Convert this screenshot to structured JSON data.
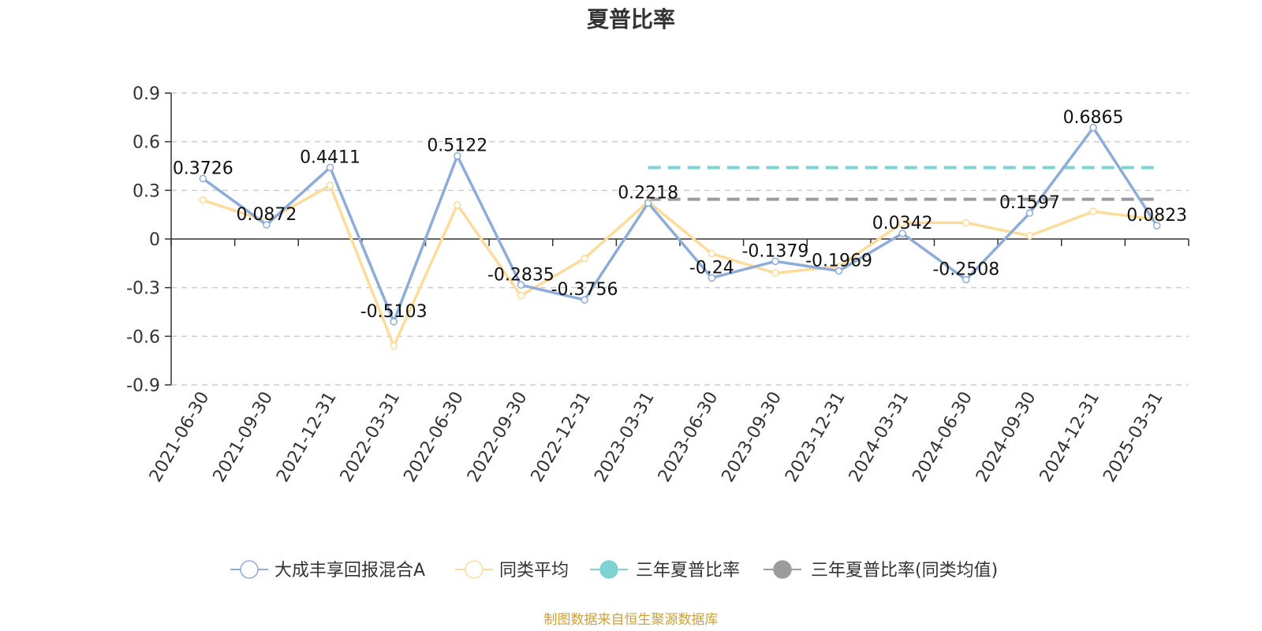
{
  "chart_data": {
    "type": "line",
    "title": "夏普比率",
    "categories": [
      "2021-06-30",
      "2021-09-30",
      "2021-12-31",
      "2022-03-31",
      "2022-06-30",
      "2022-09-30",
      "2022-12-31",
      "2023-03-31",
      "2023-06-30",
      "2023-09-30",
      "2023-12-31",
      "2024-03-31",
      "2024-06-30",
      "2024-09-30",
      "2024-12-31",
      "2025-03-31"
    ],
    "ylim": [
      -0.9,
      0.9
    ],
    "yticks": [
      0.9,
      0.6,
      0.3,
      0,
      -0.3,
      -0.6,
      -0.9
    ],
    "ytick_labels": [
      "0.9",
      "0.6",
      "0.3",
      "0",
      "-0.3",
      "-0.6",
      "-0.9"
    ],
    "grid": true,
    "legend_position": "bottom",
    "series": [
      {
        "name": "大成丰享回报混合A",
        "color": "#8eacd8",
        "values": [
          0.3726,
          0.0872,
          0.4411,
          -0.5103,
          0.5122,
          -0.2835,
          -0.3756,
          0.2218,
          -0.24,
          -0.1379,
          -0.1969,
          0.0342,
          -0.2508,
          0.1597,
          0.6865,
          0.0823
        ],
        "labels": [
          "0.3726",
          "0.0872",
          "0.4411",
          "-0.5103",
          "0.5122",
          "-0.2835",
          "-0.3756",
          "0.2218",
          "-0.24",
          "-0.1379",
          "-0.1969",
          "0.0342",
          "-0.2508",
          "0.1597",
          "0.6865",
          "0.0823"
        ]
      },
      {
        "name": "同类平均",
        "color": "#fddc9b",
        "values": [
          0.24,
          0.11,
          0.33,
          -0.66,
          0.21,
          -0.35,
          -0.12,
          0.23,
          -0.09,
          -0.21,
          -0.17,
          0.1,
          0.1,
          0.02,
          0.17,
          0.12
        ]
      }
    ],
    "reference_lines": [
      {
        "name": "三年夏普比率",
        "color": "#7fd3d2",
        "value": 0.44,
        "from_category": "2023-03-31",
        "to_category": "2025-03-31"
      },
      {
        "name": "三年夏普比率(同类均值)",
        "color": "#9c9c9c",
        "value": 0.245,
        "from_category": "2023-03-31",
        "to_category": "2025-03-31"
      }
    ],
    "source": "制图数据来自恒生聚源数据库",
    "source_color": "#c9a23a"
  }
}
